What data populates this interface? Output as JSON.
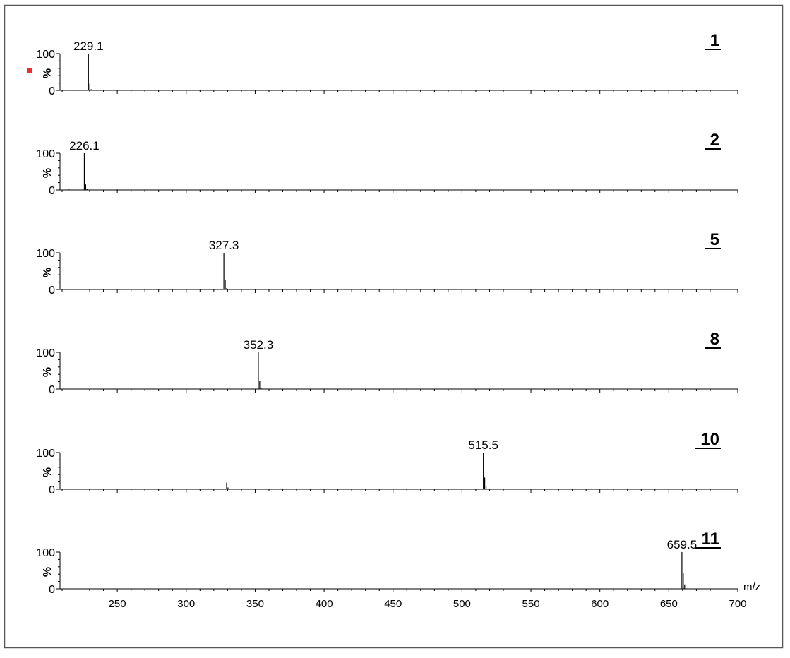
{
  "chart_data": {
    "type": "bar",
    "xlabel": "m/z",
    "ylabel": "%",
    "xlim": [
      210,
      700
    ],
    "ylim": [
      0,
      100
    ],
    "x_ticks": [
      250,
      300,
      350,
      400,
      450,
      500,
      550,
      600,
      650,
      700
    ],
    "y_ticks": [
      0,
      100
    ],
    "grid": false,
    "marker_color": "#e8312e",
    "panels": [
      {
        "compound_label": "1",
        "base_peak_label": "229.1",
        "peaks": [
          {
            "mz": 229.1,
            "intensity": 100
          },
          {
            "mz": 230.1,
            "intensity": 18
          },
          {
            "mz": 231.1,
            "intensity": 3
          }
        ],
        "noise": [
          {
            "mz": 215,
            "intensity": 2
          },
          {
            "mz": 245,
            "intensity": 2
          },
          {
            "mz": 300,
            "intensity": 1
          }
        ]
      },
      {
        "compound_label": "2",
        "base_peak_label": "226.1",
        "peaks": [
          {
            "mz": 226.1,
            "intensity": 100
          },
          {
            "mz": 227.1,
            "intensity": 15
          },
          {
            "mz": 228.1,
            "intensity": 3
          }
        ],
        "noise": [
          {
            "mz": 215,
            "intensity": 2
          },
          {
            "mz": 250,
            "intensity": 2
          },
          {
            "mz": 270,
            "intensity": 3
          }
        ]
      },
      {
        "compound_label": "5",
        "base_peak_label": "327.3",
        "peaks": [
          {
            "mz": 327.3,
            "intensity": 100
          },
          {
            "mz": 328.3,
            "intensity": 25
          },
          {
            "mz": 329.3,
            "intensity": 4
          }
        ],
        "noise": [
          {
            "mz": 220,
            "intensity": 1
          },
          {
            "mz": 260,
            "intensity": 1
          },
          {
            "mz": 300,
            "intensity": 1
          }
        ]
      },
      {
        "compound_label": "8",
        "base_peak_label": "352.3",
        "peaks": [
          {
            "mz": 352.3,
            "intensity": 100
          },
          {
            "mz": 353.3,
            "intensity": 22
          },
          {
            "mz": 354.3,
            "intensity": 4
          }
        ],
        "noise": [
          {
            "mz": 230,
            "intensity": 1
          },
          {
            "mz": 280,
            "intensity": 1
          },
          {
            "mz": 320,
            "intensity": 1
          }
        ]
      },
      {
        "compound_label": "10",
        "base_peak_label": "515.5",
        "peaks": [
          {
            "mz": 515.5,
            "intensity": 100
          },
          {
            "mz": 516.5,
            "intensity": 32
          },
          {
            "mz": 517.5,
            "intensity": 9
          },
          {
            "mz": 329.3,
            "intensity": 18
          },
          {
            "mz": 330.3,
            "intensity": 5
          }
        ],
        "noise": [
          {
            "mz": 250,
            "intensity": 1
          },
          {
            "mz": 347,
            "intensity": 2
          },
          {
            "mz": 440,
            "intensity": 1
          }
        ]
      },
      {
        "compound_label": "11",
        "base_peak_label": "659.5",
        "peaks": [
          {
            "mz": 659.5,
            "intensity": 100
          },
          {
            "mz": 660.5,
            "intensity": 42
          },
          {
            "mz": 661.5,
            "intensity": 12
          }
        ],
        "noise": [
          {
            "mz": 220,
            "intensity": 1
          },
          {
            "mz": 320,
            "intensity": 1
          },
          {
            "mz": 480,
            "intensity": 1
          }
        ]
      }
    ]
  }
}
